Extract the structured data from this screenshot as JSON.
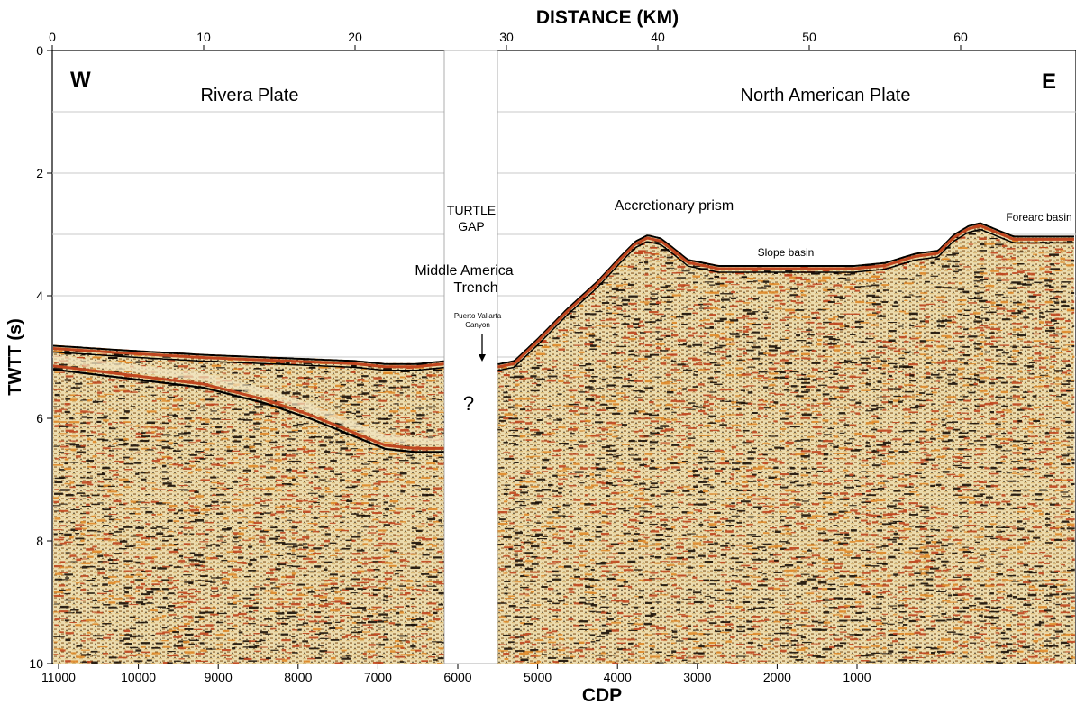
{
  "chart_data": {
    "type": "seismic-section",
    "title": "",
    "top_axis": {
      "label": "DISTANCE (KM)",
      "ticks": [
        "0",
        "10",
        "20",
        "30",
        "40",
        "50",
        "60"
      ]
    },
    "bottom_axis": {
      "label": "CDP",
      "ticks": [
        "11000",
        "10000",
        "9000",
        "8000",
        "7000",
        "6000",
        "5000",
        "4000",
        "3000",
        "2000",
        "1000"
      ]
    },
    "left_axis": {
      "label": "TWTT (s)",
      "ticks": [
        "0",
        "2",
        "4",
        "6",
        "8",
        "10"
      ],
      "ylim": [
        0,
        10
      ]
    },
    "gridlines_twtt": [
      1,
      2,
      3,
      4,
      5
    ],
    "gap": {
      "label_line1": "TURTLE",
      "label_line2": "GAP",
      "question": "?"
    },
    "labels": {
      "west": "W",
      "east": "E",
      "rivera_plate": "Rivera Plate",
      "north_american_plate": "North American Plate",
      "accretionary_prism": "Accretionary prism",
      "forearc_basin": "Forearc basin",
      "slope_basin": "Slope basin",
      "trench_line1": "Middle America",
      "trench_line2": "Trench",
      "canyon_line1": "Puerto Vallarta",
      "canyon_line2": "Canyon"
    },
    "seafloor_west": {
      "distance_km": [
        0,
        5,
        10,
        15,
        20,
        22,
        24,
        26
      ],
      "twtt_s": [
        4.8,
        4.88,
        4.95,
        5.0,
        5.05,
        5.1,
        5.1,
        5.05
      ]
    },
    "strong_reflector_west": {
      "distance_km": [
        0,
        5,
        10,
        14,
        17,
        20,
        22,
        24,
        26
      ],
      "twtt_s": [
        5.2,
        5.35,
        5.5,
        5.75,
        6.0,
        6.3,
        6.5,
        6.55,
        6.55
      ]
    },
    "seafloor_east": {
      "distance_km": [
        29.5,
        30.5,
        32,
        34,
        36,
        37.5,
        38.5,
        39.3,
        40.2,
        41,
        42,
        44,
        47,
        50,
        53,
        55,
        57,
        58.5,
        59.5,
        60.5,
        61.3,
        62.3,
        63.5,
        65,
        67
      ],
      "twtt_s": [
        5.1,
        5.05,
        4.7,
        4.2,
        3.75,
        3.35,
        3.1,
        3.0,
        3.05,
        3.2,
        3.4,
        3.5,
        3.5,
        3.5,
        3.5,
        3.45,
        3.3,
        3.25,
        3.0,
        2.85,
        2.8,
        2.9,
        3.02,
        3.02,
        3.02
      ]
    },
    "colors": {
      "sediment": "#e9d6a0",
      "strong": "#c0461f",
      "dark": "#111111",
      "grid": "#c8c8c8"
    }
  }
}
